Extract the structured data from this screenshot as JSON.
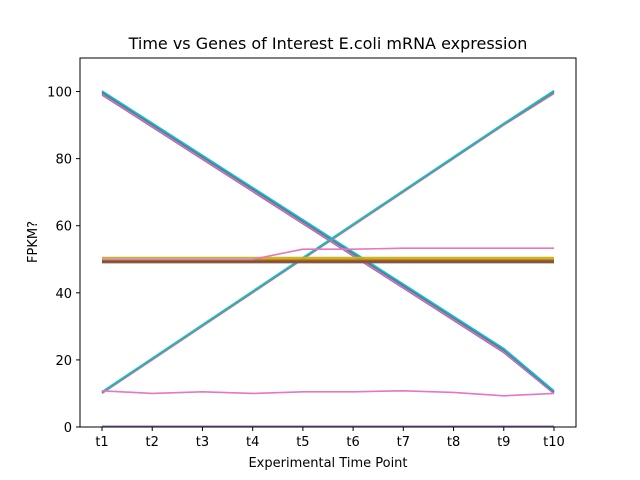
{
  "chart_data": {
    "type": "line",
    "title": "Time vs Genes of Interest E.coli mRNA expression",
    "xlabel": "Experimental Time Point",
    "ylabel": "FPKM?",
    "categories": [
      "t1",
      "t2",
      "t3",
      "t4",
      "t5",
      "t6",
      "t7",
      "t8",
      "t9",
      "t10"
    ],
    "ylim": [
      0,
      110
    ],
    "yticks": [
      0,
      20,
      40,
      60,
      80,
      100
    ],
    "grid": false,
    "legend": "none",
    "series": [
      {
        "color": "#9467bd",
        "values": [
          99.0,
          89.4,
          79.8,
          70.2,
          60.6,
          51.0,
          41.4,
          31.8,
          22.2,
          10.0
        ]
      },
      {
        "color": "#e377c2",
        "values": [
          99.3,
          89.7,
          80.1,
          70.5,
          60.9,
          51.3,
          41.7,
          32.1,
          22.5,
          10.2
        ]
      },
      {
        "color": "#7f7f7f",
        "values": [
          99.6,
          90.0,
          80.4,
          70.8,
          61.2,
          51.6,
          42.0,
          32.4,
          22.8,
          10.4
        ]
      },
      {
        "color": "#1f77b4",
        "values": [
          100.0,
          90.4,
          80.8,
          71.2,
          61.6,
          52.0,
          42.4,
          32.8,
          23.2,
          10.6
        ]
      },
      {
        "color": "#17becf",
        "values": [
          100.2,
          90.6,
          81.0,
          71.4,
          61.8,
          52.2,
          42.6,
          33.0,
          23.4,
          10.8
        ]
      },
      {
        "color": "#e377c2",
        "values": [
          10.0,
          20.0,
          30.0,
          40.0,
          50.0,
          60.0,
          70.0,
          80.0,
          90.0,
          99.4
        ]
      },
      {
        "color": "#7f7f7f",
        "values": [
          10.2,
          20.2,
          30.2,
          40.2,
          50.2,
          60.2,
          70.2,
          80.2,
          90.2,
          99.7
        ]
      },
      {
        "color": "#bcbd22",
        "values": [
          10.3,
          20.3,
          30.3,
          40.3,
          50.3,
          60.3,
          70.3,
          80.3,
          90.3,
          100.0
        ]
      },
      {
        "color": "#1f77b4",
        "values": [
          10.4,
          20.4,
          30.4,
          40.4,
          50.4,
          60.4,
          70.4,
          80.4,
          90.4,
          100.1
        ]
      },
      {
        "color": "#17becf",
        "values": [
          10.5,
          20.5,
          30.5,
          40.5,
          50.5,
          60.5,
          70.5,
          80.5,
          90.5,
          100.3
        ]
      },
      {
        "color": "#bcbd22",
        "values": [
          50.5,
          50.5,
          50.5,
          50.5,
          50.5,
          50.5,
          50.5,
          50.5,
          50.5,
          50.5
        ]
      },
      {
        "color": "#ff7f0e",
        "values": [
          50.0,
          50.0,
          50.0,
          50.0,
          50.0,
          50.0,
          50.0,
          50.0,
          50.0,
          50.0
        ]
      },
      {
        "color": "#2ca02c",
        "values": [
          49.6,
          49.6,
          49.6,
          49.6,
          49.6,
          49.6,
          49.6,
          49.6,
          49.6,
          49.6
        ]
      },
      {
        "color": "#d62728",
        "values": [
          49.3,
          49.3,
          49.3,
          49.3,
          49.3,
          49.3,
          49.3,
          49.3,
          49.3,
          49.3
        ]
      },
      {
        "color": "#8c564b",
        "values": [
          49.0,
          49.0,
          49.0,
          49.0,
          49.0,
          49.0,
          49.0,
          49.0,
          49.0,
          49.0
        ]
      },
      {
        "color": "#e377c2",
        "values": [
          50.0,
          50.0,
          50.0,
          50.0,
          53.0,
          53.0,
          53.3,
          53.3,
          53.3,
          53.3
        ]
      },
      {
        "color": "#e377c2",
        "values": [
          10.8,
          10.0,
          10.5,
          10.0,
          10.5,
          10.5,
          10.8,
          10.3,
          9.3,
          10.0
        ]
      },
      {
        "color": "#9467bd",
        "values": [
          0.2,
          0.2,
          0.2,
          0.2,
          0.2,
          0.2,
          0.2,
          0.2,
          0.2,
          0.2
        ]
      }
    ]
  }
}
